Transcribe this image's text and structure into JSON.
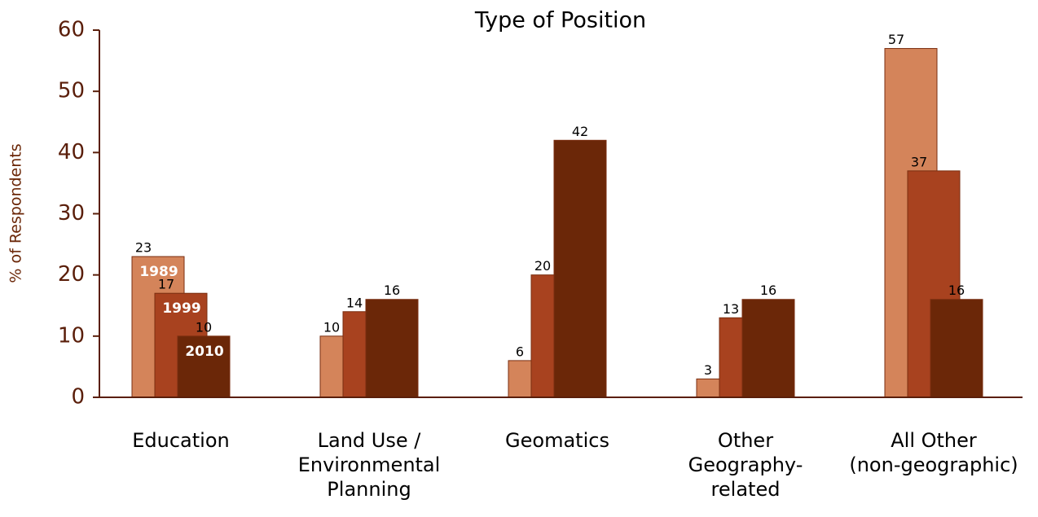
{
  "chart_data": {
    "type": "bar",
    "title": "Type of Position",
    "y_label": "% of Respondents",
    "categories": [
      "Education",
      "Land Use /\nEnvironmental\nPlanning",
      "Geomatics",
      "Other\nGeography-\nrelated",
      "All Other\n(non-geographic)"
    ],
    "series": [
      {
        "name": "1989",
        "color": "#d4845a",
        "values": [
          23,
          10,
          6,
          3,
          57
        ]
      },
      {
        "name": "1999",
        "color": "#a8421f",
        "values": [
          17,
          14,
          20,
          13,
          37
        ]
      },
      {
        "name": "2010",
        "color": "#6b2708",
        "values": [
          10,
          16,
          42,
          16,
          16
        ]
      }
    ],
    "ylim": [
      0,
      60
    ],
    "yticks": [
      0,
      10,
      20,
      30,
      40,
      50,
      60
    ]
  }
}
